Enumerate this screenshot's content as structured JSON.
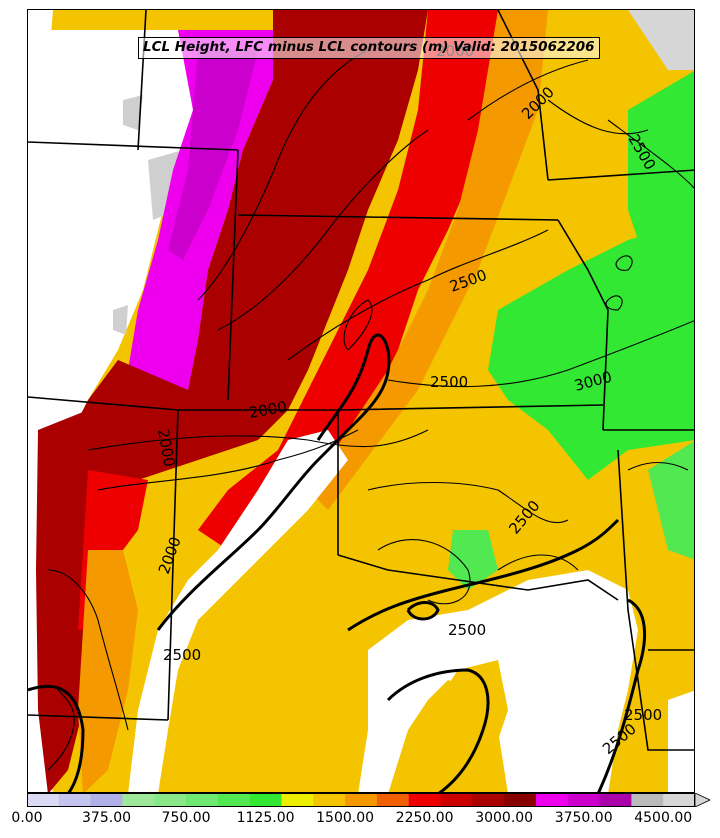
{
  "title": "LCL Height, LFC minus LCL contours (m) Valid: 2015062206",
  "colorbar": {
    "ticks": [
      "0.00",
      "375.00",
      "750.00",
      "1125.00",
      "1500.00",
      "2250.00",
      "3000.00",
      "3750.00",
      "4500.00"
    ],
    "colors": [
      "#dadaf2",
      "#c4c4ee",
      "#b0b0ea",
      "#9ee89e",
      "#88e888",
      "#6ee86e",
      "#52e852",
      "#33e833",
      "#eeee00",
      "#f4c400",
      "#f49a00",
      "#f06000",
      "#ee0000",
      "#cc0000",
      "#aa0000",
      "#880000",
      "#ee00ee",
      "#cc00cc",
      "#aa00aa",
      "#bababa",
      "#d6d6d6"
    ]
  },
  "contour_labels": [
    "2000",
    "2000",
    "2500",
    "2500",
    "2500",
    "2000",
    "3000",
    "2000",
    "2500",
    "2500",
    "2500",
    "2000",
    "2500",
    "2500"
  ]
}
